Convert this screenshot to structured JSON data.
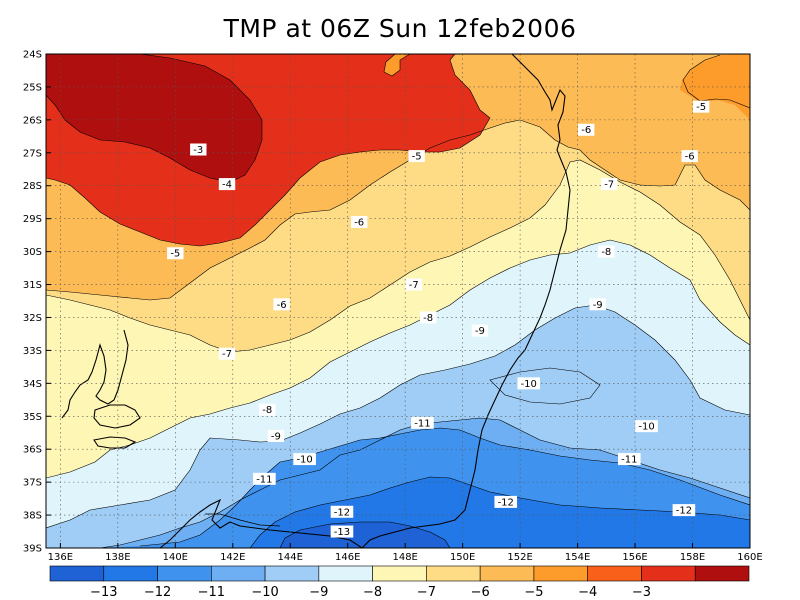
{
  "title": "TMP at 06Z Sun 12feb2006",
  "map": {
    "lon_range": [
      135.5,
      160
    ],
    "lat_range": [
      -39,
      -24
    ],
    "grid": true,
    "x_ticks": [
      {
        "lon": 136,
        "label": "136E"
      },
      {
        "lon": 138,
        "label": "138E"
      },
      {
        "lon": 140,
        "label": "140E"
      },
      {
        "lon": 142,
        "label": "142E"
      },
      {
        "lon": 144,
        "label": "144E"
      },
      {
        "lon": 146,
        "label": "146E"
      },
      {
        "lon": 148,
        "label": "148E"
      },
      {
        "lon": 150,
        "label": "150E"
      },
      {
        "lon": 152,
        "label": "152E"
      },
      {
        "lon": 154,
        "label": "154E"
      },
      {
        "lon": 156,
        "label": "156E"
      },
      {
        "lon": 158,
        "label": "158E"
      },
      {
        "lon": 160,
        "label": "160E"
      }
    ],
    "y_ticks": [
      {
        "lat": -24,
        "label": "24S"
      },
      {
        "lat": -25,
        "label": "25S"
      },
      {
        "lat": -26,
        "label": "26S"
      },
      {
        "lat": -27,
        "label": "27S"
      },
      {
        "lat": -28,
        "label": "28S"
      },
      {
        "lat": -29,
        "label": "29S"
      },
      {
        "lat": -30,
        "label": "30S"
      },
      {
        "lat": -31,
        "label": "31S"
      },
      {
        "lat": -32,
        "label": "32S"
      },
      {
        "lat": -33,
        "label": "33S"
      },
      {
        "lat": -34,
        "label": "34S"
      },
      {
        "lat": -35,
        "label": "35S"
      },
      {
        "lat": -36,
        "label": "36S"
      },
      {
        "lat": -37,
        "label": "37S"
      },
      {
        "lat": -38,
        "label": "38S"
      },
      {
        "lat": -39,
        "label": "39S"
      }
    ],
    "contour_labels": [
      {
        "text": "-3",
        "lon": 140.8,
        "lat": -26.9
      },
      {
        "text": "-4",
        "lon": 141.8,
        "lat": -27.95
      },
      {
        "text": "-5",
        "lon": 140.0,
        "lat": -30.05
      },
      {
        "text": "-5",
        "lon": 148.4,
        "lat": -27.1
      },
      {
        "text": "-5",
        "lon": 158.3,
        "lat": -25.6
      },
      {
        "text": "-6",
        "lon": 146.4,
        "lat": -29.1
      },
      {
        "text": "-6",
        "lon": 143.7,
        "lat": -31.6
      },
      {
        "text": "-6",
        "lon": 154.3,
        "lat": -26.3
      },
      {
        "text": "-6",
        "lon": 157.9,
        "lat": -27.1
      },
      {
        "text": "-7",
        "lon": 141.8,
        "lat": -33.1
      },
      {
        "text": "-7",
        "lon": 148.3,
        "lat": -31.0
      },
      {
        "text": "-7",
        "lon": 155.1,
        "lat": -27.95
      },
      {
        "text": "-8",
        "lon": 148.8,
        "lat": -32.0
      },
      {
        "text": "-8",
        "lon": 143.2,
        "lat": -34.8
      },
      {
        "text": "-8",
        "lon": 155.0,
        "lat": -30.0
      },
      {
        "text": "-9",
        "lon": 143.5,
        "lat": -35.6
      },
      {
        "text": "-9",
        "lon": 150.6,
        "lat": -32.4
      },
      {
        "text": "-9",
        "lon": 154.7,
        "lat": -31.6
      },
      {
        "text": "-10",
        "lon": 144.5,
        "lat": -36.3
      },
      {
        "text": "-10",
        "lon": 152.3,
        "lat": -34.0
      },
      {
        "text": "-10",
        "lon": 156.4,
        "lat": -35.3
      },
      {
        "text": "-11",
        "lon": 148.6,
        "lat": -35.2
      },
      {
        "text": "-11",
        "lon": 143.1,
        "lat": -36.9
      },
      {
        "text": "-11",
        "lon": 155.8,
        "lat": -36.3
      },
      {
        "text": "-12",
        "lon": 145.8,
        "lat": -37.9
      },
      {
        "text": "-12",
        "lon": 151.5,
        "lat": -37.6
      },
      {
        "text": "-12",
        "lon": 157.7,
        "lat": -37.85
      },
      {
        "text": "-13",
        "lon": 145.8,
        "lat": -38.5
      }
    ]
  },
  "colorbar": {
    "colors": [
      "#1e62d6",
      "#2178e6",
      "#3f93ee",
      "#6eaff3",
      "#9fcdf6",
      "#dff5fb",
      "#fef6b4",
      "#fedc86",
      "#fdbb55",
      "#fd9c2a",
      "#f9611a",
      "#e4301b",
      "#b00f0f"
    ],
    "labels": [
      "-13",
      "-12",
      "-11",
      "-10",
      "-9",
      "-8",
      "-7",
      "-6",
      "-5",
      "-4",
      "-3"
    ]
  },
  "legend": {
    "levels": [
      -13,
      -12,
      -11,
      -10,
      -9,
      -8,
      -7,
      -6,
      -5,
      -4,
      -3
    ]
  }
}
